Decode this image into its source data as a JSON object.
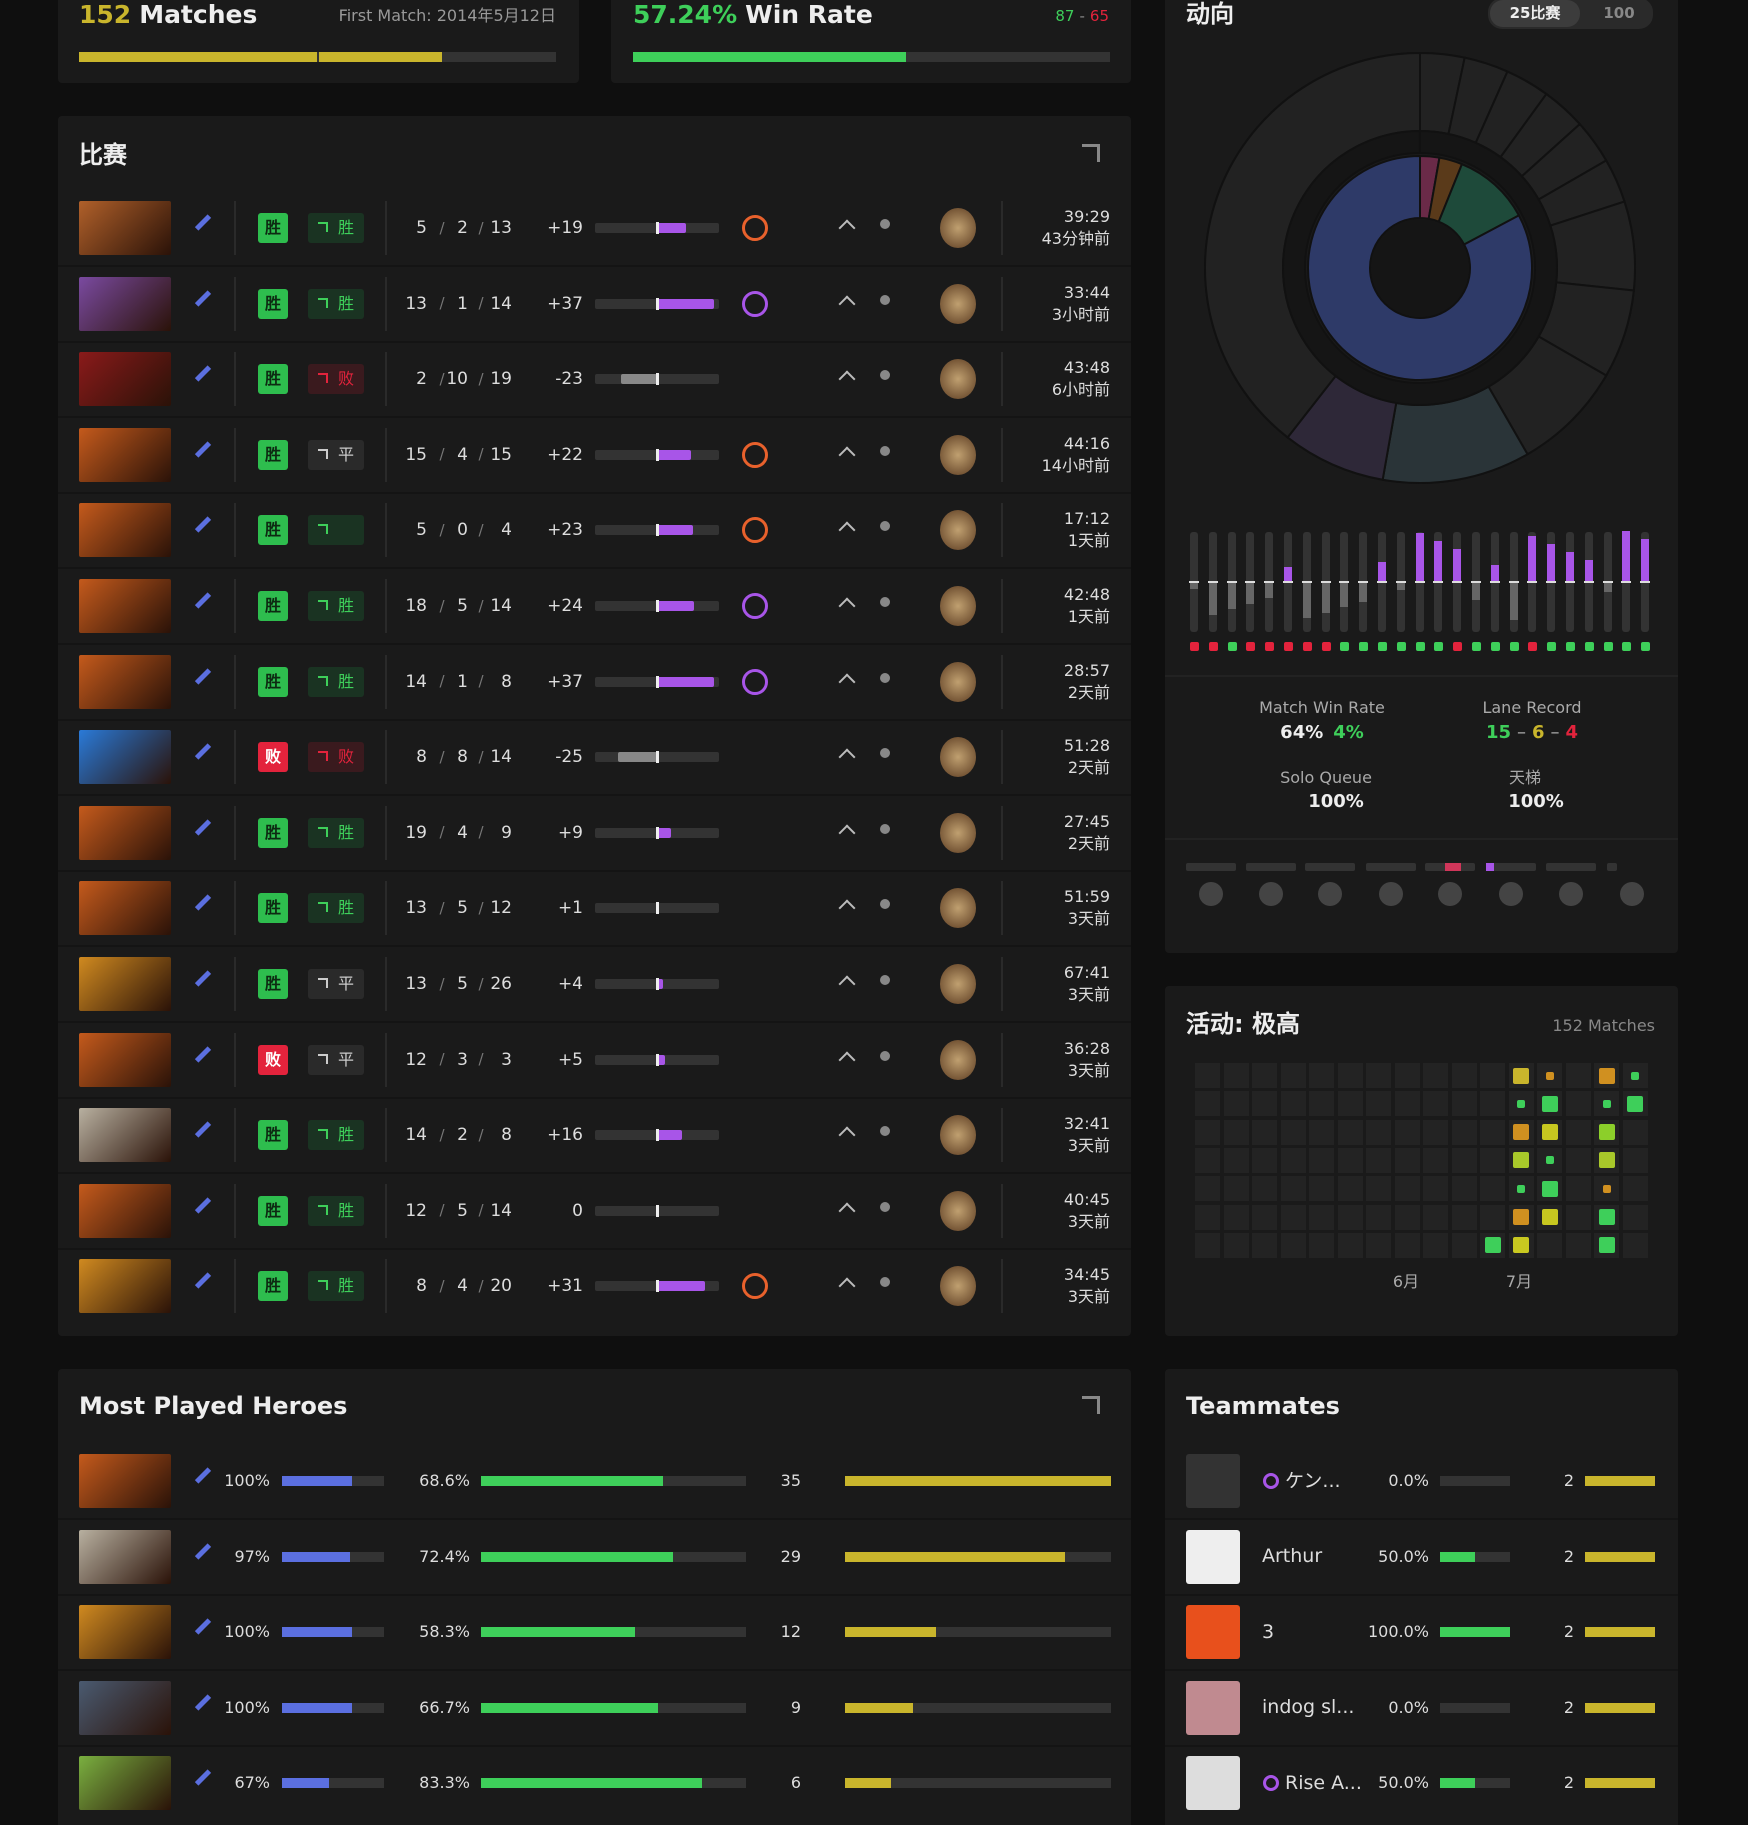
{
  "summary": {
    "matches_count": "152",
    "matches_label": "Matches",
    "first_match": "First Match: 2014年5月12日",
    "win_rate": 57.24,
    "win_rate_label": "57.24%",
    "win_rate_text": "Win Rate",
    "wins": "87",
    "record_separator": "-",
    "losses": "65"
  },
  "matches": {
    "title": "比赛",
    "kda_separator": "/",
    "rows": [
      {
        "result": "胜",
        "lane": "胜",
        "kills": 5,
        "deaths": 2,
        "assists": 13,
        "imp": 19,
        "imp_label": "+19",
        "duration": "39:29",
        "ago": "43分钟前"
      },
      {
        "result": "胜",
        "lane": "胜",
        "kills": 13,
        "deaths": 1,
        "assists": 14,
        "imp": 37,
        "imp_label": "+37",
        "duration": "33:44",
        "ago": "3小时前"
      },
      {
        "result": "胜",
        "lane": "败",
        "kills": 2,
        "deaths": 10,
        "assists": 19,
        "imp": -23,
        "imp_label": "-23",
        "duration": "43:48",
        "ago": "6小时前"
      },
      {
        "result": "胜",
        "lane": "平",
        "kills": 15,
        "deaths": 4,
        "assists": 15,
        "imp": 22,
        "imp_label": "+22",
        "duration": "44:16",
        "ago": "14小时前"
      },
      {
        "result": "胜",
        "lane": null,
        "kills": 5,
        "deaths": 0,
        "assists": 4,
        "imp": 23,
        "imp_label": "+23",
        "duration": "17:12",
        "ago": "1天前"
      },
      {
        "result": "胜",
        "lane": "胜",
        "kills": 18,
        "deaths": 5,
        "assists": 14,
        "imp": 24,
        "imp_label": "+24",
        "duration": "42:48",
        "ago": "1天前"
      },
      {
        "result": "胜",
        "lane": "胜",
        "kills": 14,
        "deaths": 1,
        "assists": 8,
        "imp": 37,
        "imp_label": "+37",
        "duration": "28:57",
        "ago": "2天前"
      },
      {
        "result": "败",
        "lane": "败",
        "kills": 8,
        "deaths": 8,
        "assists": 14,
        "imp": -25,
        "imp_label": "-25",
        "duration": "51:28",
        "ago": "2天前"
      },
      {
        "result": "胜",
        "lane": "胜",
        "kills": 19,
        "deaths": 4,
        "assists": 9,
        "imp": 9,
        "imp_label": "+9",
        "duration": "27:45",
        "ago": "2天前"
      },
      {
        "result": "胜",
        "lane": "胜",
        "kills": 13,
        "deaths": 5,
        "assists": 12,
        "imp": 1,
        "imp_label": "+1",
        "duration": "51:59",
        "ago": "3天前"
      },
      {
        "result": "胜",
        "lane": "平",
        "kills": 13,
        "deaths": 5,
        "assists": 26,
        "imp": 4,
        "imp_label": "+4",
        "duration": "67:41",
        "ago": "3天前"
      },
      {
        "result": "败",
        "lane": "平",
        "kills": 12,
        "deaths": 3,
        "assists": 3,
        "imp": 5,
        "imp_label": "+5",
        "duration": "36:28",
        "ago": "3天前"
      },
      {
        "result": "胜",
        "lane": "胜",
        "kills": 14,
        "deaths": 2,
        "assists": 8,
        "imp": 16,
        "imp_label": "+16",
        "duration": "32:41",
        "ago": "3天前"
      },
      {
        "result": "胜",
        "lane": "胜",
        "kills": 12,
        "deaths": 5,
        "assists": 14,
        "imp": 0,
        "imp_label": "0",
        "duration": "40:45",
        "ago": "3天前"
      },
      {
        "result": "胜",
        "lane": "胜",
        "kills": 8,
        "deaths": 4,
        "assists": 20,
        "imp": 31,
        "imp_label": "+31",
        "duration": "34:45",
        "ago": "3天前"
      }
    ]
  },
  "trends": {
    "title": "动向",
    "tabs": [
      "25比赛",
      "100"
    ],
    "match_win_rate_label": "Match Win Rate",
    "match_win_rate": "64%",
    "match_win_rate_change": "4%",
    "lane_record_label": "Lane Record",
    "lane_wins": "15",
    "lane_separator": "–",
    "lane_draws": "6",
    "lane_losses": "4",
    "solo_label": "Solo Queue",
    "solo_value": "100%",
    "ladder_label": "天梯",
    "ladder_value": "100%"
  },
  "activity": {
    "title": "活动: 极高",
    "matches": "152 Matches",
    "months": [
      "6月",
      "7月"
    ]
  },
  "heroes": {
    "title": "Most Played Heroes",
    "rows": [
      {
        "role": 100,
        "role_label": "100%",
        "win": 68.6,
        "win_label": "68.6%",
        "matches": 35
      },
      {
        "role": 97,
        "role_label": "97%",
        "win": 72.4,
        "win_label": "72.4%",
        "matches": 29
      },
      {
        "role": 100,
        "role_label": "100%",
        "win": 58.3,
        "win_label": "58.3%",
        "matches": 12
      },
      {
        "role": 100,
        "role_label": "100%",
        "win": 66.7,
        "win_label": "66.7%",
        "matches": 9
      },
      {
        "role": 67,
        "role_label": "67%",
        "win": 83.3,
        "win_label": "83.3%",
        "matches": 6
      }
    ]
  },
  "teammates": {
    "title": "Teammates",
    "rows": [
      {
        "name": "ケン...",
        "win": 0.0,
        "win_label": "0.0%",
        "matches": 2
      },
      {
        "name": "Arthur",
        "win": 50.0,
        "win_label": "50.0%",
        "matches": 2
      },
      {
        "name": "3",
        "win": 100.0,
        "win_label": "100.0%",
        "matches": 2
      },
      {
        "name": "indog sl...",
        "win": 0.0,
        "win_label": "0.0%",
        "matches": 2
      },
      {
        "name": "Rise A...",
        "win": 50.0,
        "win_label": "50.0%",
        "matches": 2
      }
    ]
  }
}
